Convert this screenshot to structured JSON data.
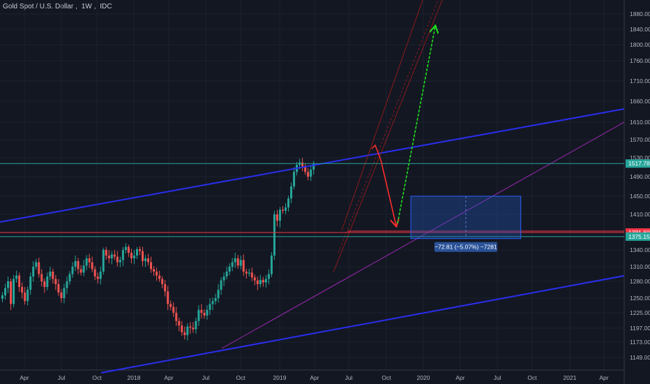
{
  "header": {
    "symbol": "Gold Spot / U.S. Dollar",
    "interval": "1W",
    "source": "IDC"
  },
  "chart_data": {
    "type": "candlestick",
    "title": "Gold Spot / U.S. Dollar, 1W, IDC",
    "y_ticks": [
      1880,
      1840,
      1800,
      1760,
      1710,
      1660,
      1610,
      1570,
      1530,
      1490,
      1450,
      1410,
      1375,
      1340,
      1310,
      1280,
      1250,
      1225,
      1197,
      1173,
      1149
    ],
    "y_tick_labels": [
      "1880.00",
      "1840.00",
      "1800.00",
      "1760.00",
      "1710.00",
      "1660.00",
      "1610.00",
      "1570.00",
      "1530.00",
      "1490.00",
      "1450.00",
      "1410.00",
      "1375.00",
      "1340.00",
      "1310.00",
      "1280.00",
      "1250.00",
      "1225.00",
      "1197.00",
      "1173.00",
      "1149.00"
    ],
    "x_tick_labels": [
      "Apr",
      "Jul",
      "Oct",
      "2018",
      "Apr",
      "Jul",
      "Oct",
      "2019",
      "Apr",
      "Jul",
      "Oct",
      "2020",
      "Apr",
      "Jul",
      "Oct",
      "2021",
      "Apr"
    ],
    "x_tick_dates": [
      "2017-04-01",
      "2017-07-01",
      "2017-10-01",
      "2018-01-01",
      "2018-04-01",
      "2018-07-01",
      "2018-10-01",
      "2019-01-01",
      "2019-04-01",
      "2019-07-01",
      "2019-10-01",
      "2020-01-01",
      "2020-04-01",
      "2020-07-01",
      "2020-10-01",
      "2021-01-01",
      "2021-04-01"
    ],
    "price_labels": [
      {
        "text": "1517.78",
        "value": 1517.78,
        "color": "#26a69a"
      },
      {
        "text": "1381.60",
        "value": 1381.6,
        "color": "#f23645"
      },
      {
        "text": "1375.15",
        "value": 1375.15,
        "color": "#26a69a"
      }
    ],
    "horizontal_lines": [
      {
        "value": 1517.78,
        "color": "#26a69a"
      },
      {
        "value": 1381.6,
        "color": "#f23645"
      },
      {
        "value": 1375.15,
        "color": "#26a69a"
      }
    ],
    "measure_box": {
      "label": "−72.81 (−5.07%) −7281",
      "price_top": 1450,
      "price_bottom": 1370,
      "date_start": "2019-12-01",
      "date_end": "2020-09-01"
    },
    "closes": [
      1255,
      1268,
      1280,
      1240,
      1285,
      1292,
      1270,
      1260,
      1245,
      1265,
      1290,
      1310,
      1318,
      1295,
      1280,
      1270,
      1290,
      1300,
      1285,
      1275,
      1260,
      1250,
      1268,
      1280,
      1295,
      1310,
      1320,
      1305,
      1298,
      1312,
      1325,
      1318,
      1305,
      1290,
      1285,
      1300,
      1340,
      1330,
      1325,
      1332,
      1328,
      1318,
      1322,
      1340,
      1348,
      1335,
      1325,
      1330,
      1342,
      1338,
      1320,
      1325,
      1318,
      1305,
      1300,
      1292,
      1285,
      1275,
      1262,
      1240,
      1235,
      1225,
      1210,
      1202,
      1190,
      1185,
      1200,
      1198,
      1195,
      1210,
      1230,
      1225,
      1220,
      1230,
      1240,
      1245,
      1250,
      1265,
      1282,
      1290,
      1300,
      1310,
      1318,
      1325,
      1312,
      1322,
      1300,
      1296,
      1298,
      1288,
      1282,
      1275,
      1283,
      1278,
      1285,
      1295,
      1330,
      1410,
      1400,
      1420,
      1418,
      1425,
      1445,
      1470,
      1500,
      1515,
      1520,
      1512,
      1500,
      1490,
      1505,
      1517
    ]
  }
}
